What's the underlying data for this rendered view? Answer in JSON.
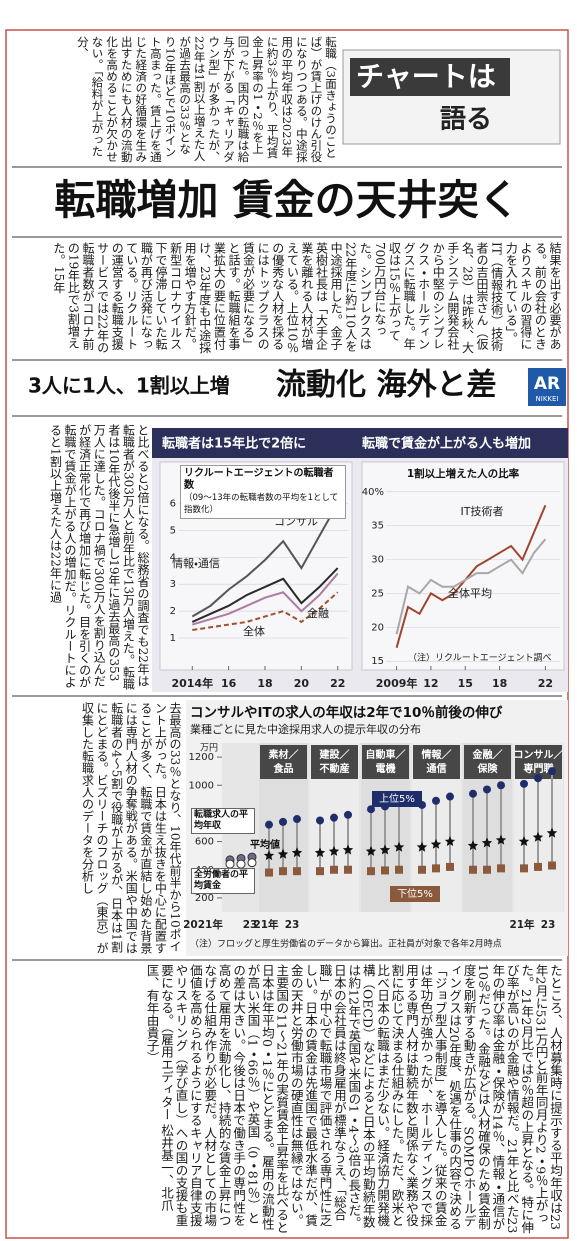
{
  "logo": {
    "title": "チャートは",
    "sub": "語る"
  },
  "headline": "転職増加 賃金の天井突く",
  "subheadline": {
    "lead": "3人に1人、1割以上増",
    "main": "流動化 海外と差"
  },
  "ar_badge": {
    "label": "AR",
    "sub": "NIKKEI"
  },
  "article": [
    "転職（3面きょうのことば）が賃上げのけん引役になりつつある。中途採用の平均年収は2023年に約3％上がり、平均賃金上昇率の1・2％を上回った。国内の転職は給与が下がる「キャリアダウン型」が多かったが、22年は1割以上増えた人が過去最高の33％となり10年ほどで10ポイント高まった。賃上げを通じた経済の好循環を生み出すためにも人材の流動化を高めることが欠かせない。「給料が上がった分、",
    "結果を出す必要がある。前の会社のときよりスキルの習得に力を入れている」。IT（情報技術）技術者の吉田崇さん（仮名、28）は昨秋、大手システム開発会社から中堅のシンプレクス・ホールディングスに転職した。年収は15％上がって700万円台になった。シンプレクスは22年度に約110人を中途採用した。金子英樹社長は「大手企業を離れる人材が増えている。上位10％の優秀な人材を採るにはトップクラスの賃金が必要になる」と話す。転職組を事業拡大の要に位置付け、23年度も中途採用を増やす方針だ。新型コロナウイルス下で停滞していた転職が再び活発になっている。リクルートの運営する転職支援サービスでは22年の転職者数がコロナ前の19年比で3割増えた。15年",
    "と比べると2倍になる。総務省の調査でも22年は転職者が303万人と前年比で13万人増えた。転職者は10年代後半に急増し19年に過去最高の353万人に達した。コロナ禍で300万人を割り込んだが経済正常化で再び増加に転じた。目を引くのが転職で賃金が上がる人の増加だ。リクルートによると1割以上増えた人は22年に過",
    "去最高の33％となり、10年代前半から10ポイント上がった。日本は生え抜きを中心に配置することが多く、転職で賃金が直結し始めた背景には専門人材の争奪戦がある。米国や中国では転職者の4～5割で役職が上がるが、日本は1割にとどまる。ビズリーチのフロッグ（東京）が収集した転職求人のデータを分析し",
    "たところ、人材募集時に提示する平均年収は23年2月に531万円と前年同月より2・9％上がった。21年2月比では6％超の上昇となる。特に伸び率が高いのが金融や情報だ。21年と比べた23年の伸び率は金融・保険が14％、情報・通信が10％だった。金融などは人材確保のため賃金制度を刷新する動きが広がる。SOMPOホールディングスは20年度、処遇を仕事の内容で決める「ジョブ型人事制度」を導入した。従来の賃金は年功色が強かったが、ホールディングスで採用する専門人材は勤続年数と関係なく業務や役割に応じて決まる仕組みにした。ただ、欧米と比べ日本の転職はまだ少ない。経済協力開発機構（OECD）などによると日本の平均勤続年数は約12年で英国や米国の1・4～3倍の長さだ。日本の会社員は終身雇用が標準なうえ、「総合職」が中心で転職市場で評価される専門性に乏しい。日本の賃金は先進国で最低水準だが、賃金の天井と労働市場の硬直性は無縁ではない。主要国の11～21年の実質賃金上昇率を比べると日本は年平均0・1％にとどまる。雇用の流動性が高い米国（1・66％）や英国（0・81％）との差は大きい。今後は日本で働き手の専門性を高めて雇用を流動化し、持続的な賃金上昇につなげる仕組み作りが必要だ。人材としての市場価値を高められるようにするキャリア自律支援やリスキリング（学び直し）への国の支援も重要になる。（雇用エディター 松井基一、北爪匡、有年由貴子）"
  ],
  "chart_data": [
    {
      "type": "line",
      "title": "転職者は15年比で2倍に",
      "subtitle": "リクルートエージェントの転職者数",
      "note": "（09～13年の転職者数の平均を1として指数化）",
      "x": [
        2014,
        2015,
        2016,
        2017,
        2018,
        2019,
        2020,
        2021,
        2022
      ],
      "xlim": [
        2013.6,
        2022.4
      ],
      "xticks": [
        {
          "value": 2014,
          "label": "2014年"
        },
        {
          "value": 2016,
          "label": "16"
        },
        {
          "value": 2018,
          "label": "18"
        },
        {
          "value": 2020,
          "label": "20"
        },
        {
          "value": 2022,
          "label": "22"
        }
      ],
      "ylim": [
        0,
        6.5
      ],
      "yticks": [
        1,
        2,
        3,
        4,
        5,
        6
      ],
      "grid": true,
      "series": [
        {
          "name": "コンサル",
          "color": "#555555",
          "dashed": false,
          "values": [
            1.8,
            2.2,
            2.8,
            3.3,
            3.9,
            4.6,
            3.6,
            4.8,
            6.0
          ]
        },
        {
          "name": "情報・通信",
          "color": "#2a2a2a",
          "dashed": false,
          "values": [
            1.6,
            1.9,
            2.2,
            2.6,
            2.9,
            3.2,
            2.3,
            2.9,
            3.6
          ]
        },
        {
          "name": "全体",
          "color": "#b07ba0",
          "dashed": false,
          "values": [
            1.5,
            1.7,
            1.9,
            2.2,
            2.5,
            2.7,
            2.0,
            2.6,
            3.4
          ]
        },
        {
          "name": "金融",
          "color": "#a0522d",
          "dashed": true,
          "values": [
            1.3,
            1.4,
            1.5,
            1.6,
            1.8,
            2.0,
            1.6,
            2.1,
            2.7
          ]
        }
      ]
    },
    {
      "type": "line",
      "title": "転職で賃金が上がる人も増加",
      "subtitle": "1割以上増えた人の比率",
      "note": "（注）リクルートエージェント調べ",
      "x": [
        2009,
        2010,
        2011,
        2012,
        2013,
        2014,
        2015,
        2016,
        2017,
        2018,
        2019,
        2020,
        2021,
        2022
      ],
      "xlim": [
        2008.6,
        2022.4
      ],
      "xticks": [
        {
          "value": 2009,
          "label": "2009年"
        },
        {
          "value": 2012,
          "label": "12"
        },
        {
          "value": 2015,
          "label": "15"
        },
        {
          "value": 2018,
          "label": "18"
        },
        {
          "value": 2022,
          "label": "22"
        }
      ],
      "ylim": [
        14,
        41
      ],
      "yticks": [
        15,
        20,
        25,
        30,
        35,
        {
          "value": 40,
          "label": "40%"
        }
      ],
      "grid": true,
      "series": [
        {
          "name": "IT技術者",
          "color": "#a0452d",
          "dashed": false,
          "values": [
            17,
            23,
            22,
            25,
            24,
            25,
            27,
            29,
            30,
            31,
            32,
            30,
            34,
            38
          ]
        },
        {
          "name": "全体平均",
          "color": "#a8a8a8",
          "dashed": false,
          "values": [
            19,
            26,
            25,
            27,
            26,
            26,
            27,
            28,
            28,
            29,
            30,
            28,
            31,
            33
          ]
        }
      ]
    },
    {
      "type": "range",
      "title": "コンサルやITの求人の年収は2年で10％前後の伸び",
      "subtitle": "業種ごとに見た中途採用求人の提示年収の分布",
      "y_unit": "万円",
      "categories": [
        [
          "素材／",
          "食品"
        ],
        [
          "建設／",
          "不動産"
        ],
        [
          "自動車／",
          "電機"
        ],
        [
          "情報／",
          "通信"
        ],
        [
          "金融／",
          "保険"
        ],
        [
          "コンサル／",
          "専門職"
        ]
      ],
      "x_labels": [
        "2021年",
        "23",
        "21年",
        "23",
        "21年",
        "23"
      ],
      "ylim": [
        100,
        1300
      ],
      "yticks": [
        200,
        400,
        600,
        800,
        1000,
        1200
      ],
      "series": [
        {
          "name": "上位5%",
          "color": "#1f2d6b",
          "values": [
            [
              720,
              740,
              760
            ],
            [
              750,
              770,
              790
            ],
            [
              830,
              850,
              880
            ],
            [
              860,
              890,
              920
            ],
            [
              940,
              970,
              1000
            ],
            [
              1010,
              1050,
              1100
            ]
          ]
        },
        {
          "name": "平均値",
          "color": "#111111",
          "values": [
            [
              500,
              510,
              520
            ],
            [
              520,
              530,
              540
            ],
            [
              530,
              540,
              560
            ],
            [
              560,
              580,
              600
            ],
            [
              570,
              590,
              610
            ],
            [
              600,
              630,
              660
            ]
          ]
        },
        {
          "name": "下位5%",
          "color": "#8b5a3c",
          "values": [
            [
              380,
              390,
              390
            ],
            [
              390,
              400,
              400
            ],
            [
              390,
              395,
              400
            ],
            [
              400,
              410,
              420
            ],
            [
              400,
              400,
              410
            ],
            [
              410,
              420,
              430
            ]
          ]
        }
      ],
      "reference": [
        {
          "name": "転職求人の平均年収",
          "color": "#6d6d8a",
          "values": [
            470,
            480,
            490
          ]
        },
        {
          "name": "全労働者の平均賃金",
          "color": "#ffffff",
          "values": [
            440,
            440,
            450
          ]
        }
      ],
      "note": "（注）フロッグと厚生労働省のデータから算出。正社員が対象で各年2月時点"
    }
  ]
}
